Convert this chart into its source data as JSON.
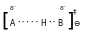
{
  "bg_color": "#ffffff",
  "text_color": "#000000",
  "bracket_left": "[",
  "bracket_right": "]",
  "delta_minus": "δ⁻",
  "A": "A",
  "dots1": "·····",
  "H": "H",
  "dots2": "··",
  "B": "B",
  "dagger": "‡",
  "circle_minus": "⊖",
  "fs_bracket": 14,
  "fs_main": 5.5,
  "fs_small": 4.2,
  "fs_dagger": 5.0,
  "fs_circle": 5.5
}
